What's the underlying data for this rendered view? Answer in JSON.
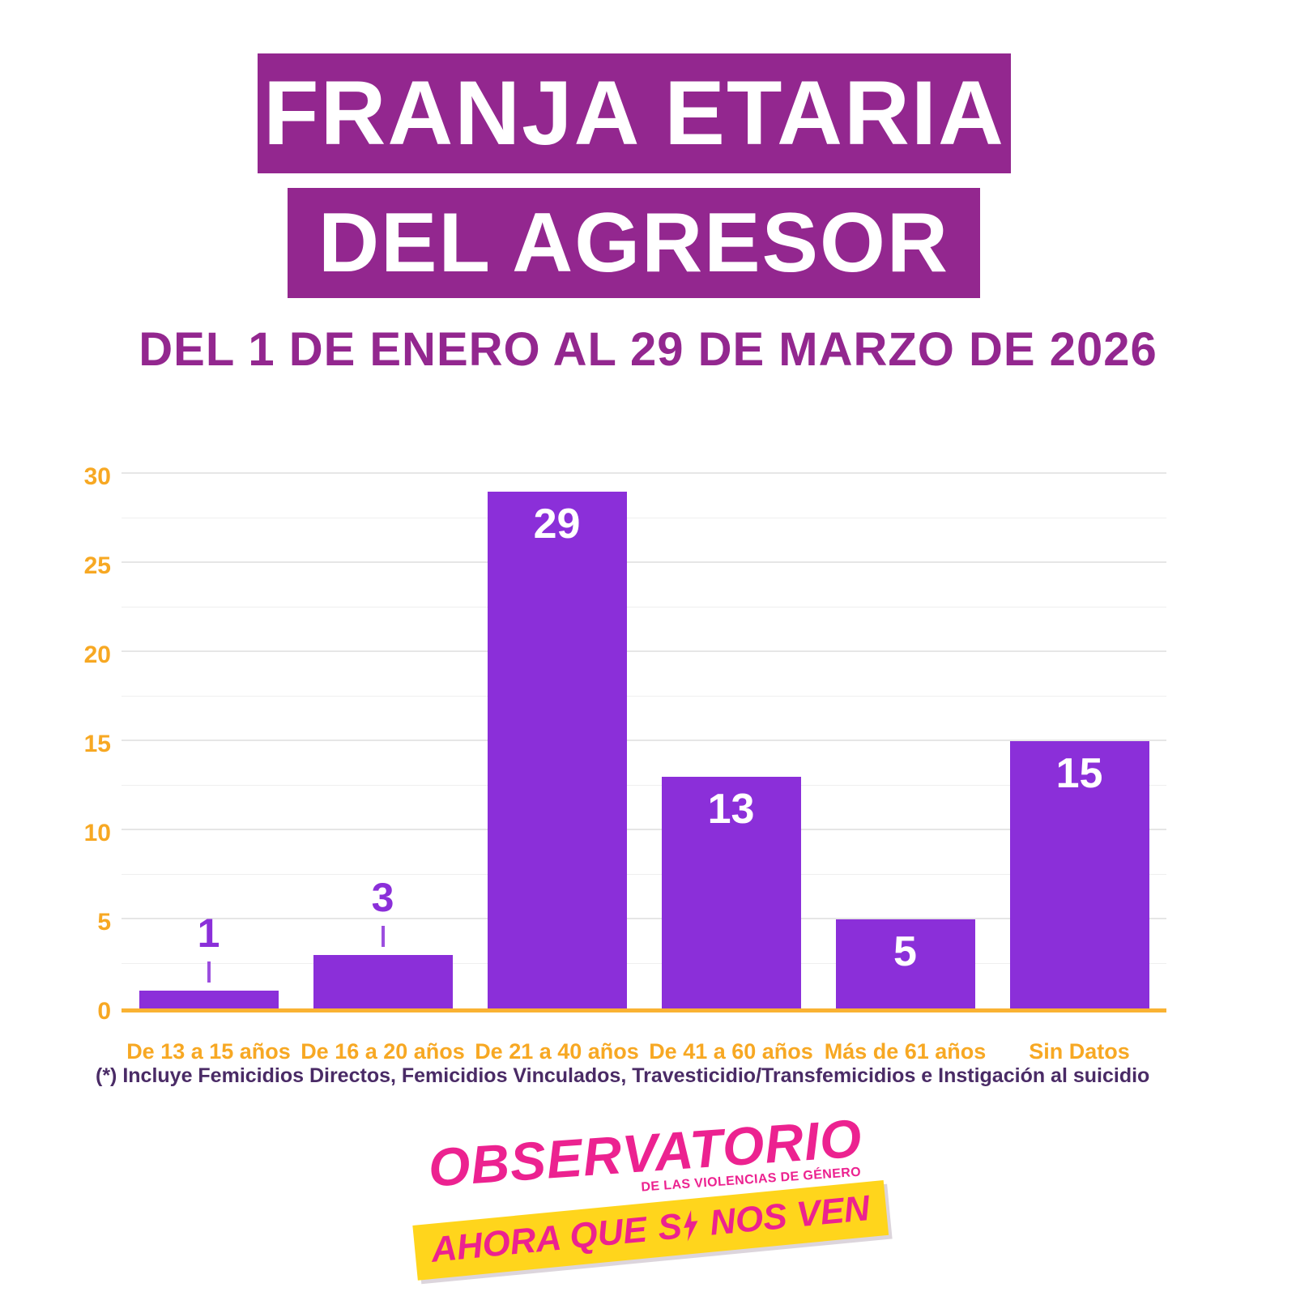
{
  "title": {
    "line1": "FRANJA ETARIA",
    "line2": "DEL AGRESOR",
    "subtitle": "DEL 1 DE ENERO AL 29 DE MARZO DE 2026"
  },
  "chart_data": {
    "type": "bar",
    "categories": [
      "De 13 a 15 años",
      "De 16 a 20 años",
      "De 21 a 40 años",
      "De 41 a 60 años",
      "Más de 61 años",
      "Sin Datos"
    ],
    "values": [
      1,
      3,
      29,
      13,
      5,
      15
    ],
    "title": "Franja etaria del agresor",
    "xlabel": "",
    "ylabel": "",
    "ylim": [
      0,
      30
    ],
    "yticks": [
      0,
      5,
      10,
      15,
      20,
      25,
      30
    ],
    "grid": true,
    "legend": "none",
    "bar_color": "#8B2FD9",
    "value_label_inside_color": "#FFFFFF",
    "value_label_outside_color": "#8B2FD9"
  },
  "note": "(*) Incluye Femicidios Directos, Femicidios Vinculados,  Travesticidio/Transfemicidios e Instigación al suicidio",
  "footer": {
    "brand": "OBSERVATORIO",
    "brand_sub": "DE LAS VIOLENCIAS DE GÉNERO",
    "slogan_left": "AHORA QUE",
    "slogan_si": "S",
    "slogan_right": "NOS VEN"
  },
  "colors": {
    "banner_purple": "#93278F",
    "bar_purple": "#8B2FD9",
    "accent_orange": "#F7A823",
    "axis_orange": "#F9B233",
    "note_purple": "#4A2B66",
    "brand_pink": "#EC2290",
    "badge_yellow": "#FFD51C"
  }
}
